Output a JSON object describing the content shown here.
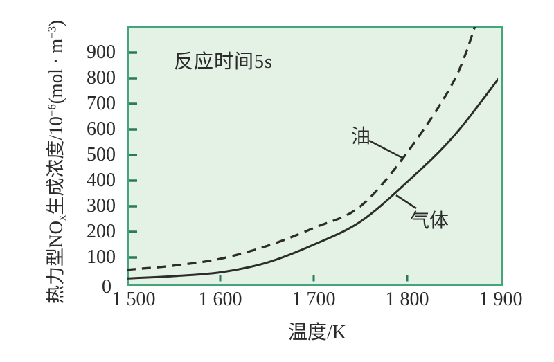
{
  "chart_data": {
    "type": "line",
    "annotation": "反应时间5s",
    "xlabel": "温度/K",
    "ylabel": "热力型NOx生成浓度/10⁻⁶(mol·m⁻³)",
    "xlim": [
      1500,
      1900
    ],
    "ylim": [
      0,
      1000
    ],
    "x_ticks": [
      1500,
      1600,
      1700,
      1800,
      1900
    ],
    "x_tick_labels": [
      "1 500",
      "1 600",
      "1 700",
      "1 800",
      "1 900"
    ],
    "y_ticks": [
      0,
      100,
      200,
      300,
      400,
      500,
      600,
      700,
      800,
      900
    ],
    "y_tick_labels": [
      "0",
      "100",
      "200",
      "300",
      "400",
      "500",
      "600",
      "700",
      "800",
      "900"
    ],
    "grid": false,
    "legend_position": "inline-curve-labels",
    "series": [
      {
        "name": "油",
        "line_style": "dashed",
        "x": [
          1500,
          1550,
          1600,
          1650,
          1700,
          1750,
          1800,
          1850,
          1875
        ],
        "values": [
          52,
          68,
          95,
          145,
          215,
          300,
          510,
          790,
          1030
        ]
      },
      {
        "name": "气体",
        "line_style": "solid",
        "x": [
          1500,
          1550,
          1600,
          1650,
          1700,
          1750,
          1800,
          1850,
          1900
        ],
        "values": [
          18,
          27,
          42,
          80,
          150,
          240,
          395,
          575,
          810
        ]
      }
    ]
  },
  "labels": {
    "ylabel_parts": {
      "p1": "热力型NO",
      "sub1": "x",
      "p2": "生成浓度/10",
      "sup1": "−6",
      "p3": "(mol · m",
      "sup2": "−3",
      "p4": ")"
    }
  },
  "colors": {
    "plot_background": "#e4f2e5",
    "plot_border": "#43a579",
    "tick_mark": "#2c7a5c",
    "curve": "#2c2c28",
    "text": "#2b2b2b"
  }
}
